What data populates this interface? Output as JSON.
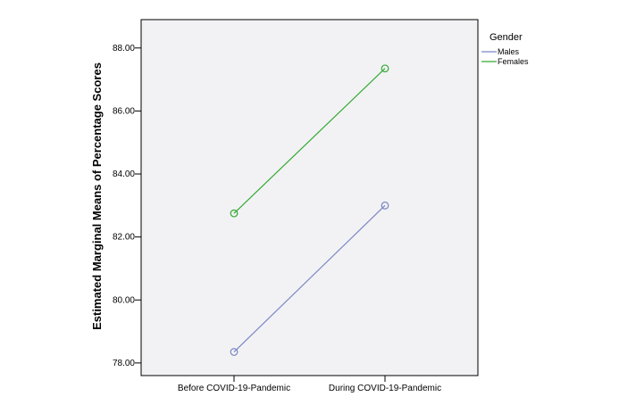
{
  "chart_data": {
    "type": "line",
    "title": "",
    "xlabel": "",
    "ylabel": "Estimated Marginal Means of Percentage Scores",
    "categories": [
      "Before COVID-19-Pandemic",
      "During COVID-19-Pandemic"
    ],
    "ylim": [
      77.6,
      88.9
    ],
    "yticks": [
      78.0,
      80.0,
      82.0,
      84.0,
      86.0,
      88.0
    ],
    "ytick_labels": [
      "78.00",
      "80.00",
      "82.00",
      "84.00",
      "86.00",
      "88.00"
    ],
    "grid": false,
    "legend": {
      "title": "Gender",
      "placement": "right"
    },
    "series": [
      {
        "name": "Males",
        "values": [
          78.35,
          83.0
        ],
        "color": "#7b86c6",
        "marker": "open-circle"
      },
      {
        "name": "Females",
        "values": [
          82.75,
          87.35
        ],
        "color": "#33aa33",
        "marker": "open-circle"
      }
    ],
    "plot_background": "#f2f2f4"
  }
}
